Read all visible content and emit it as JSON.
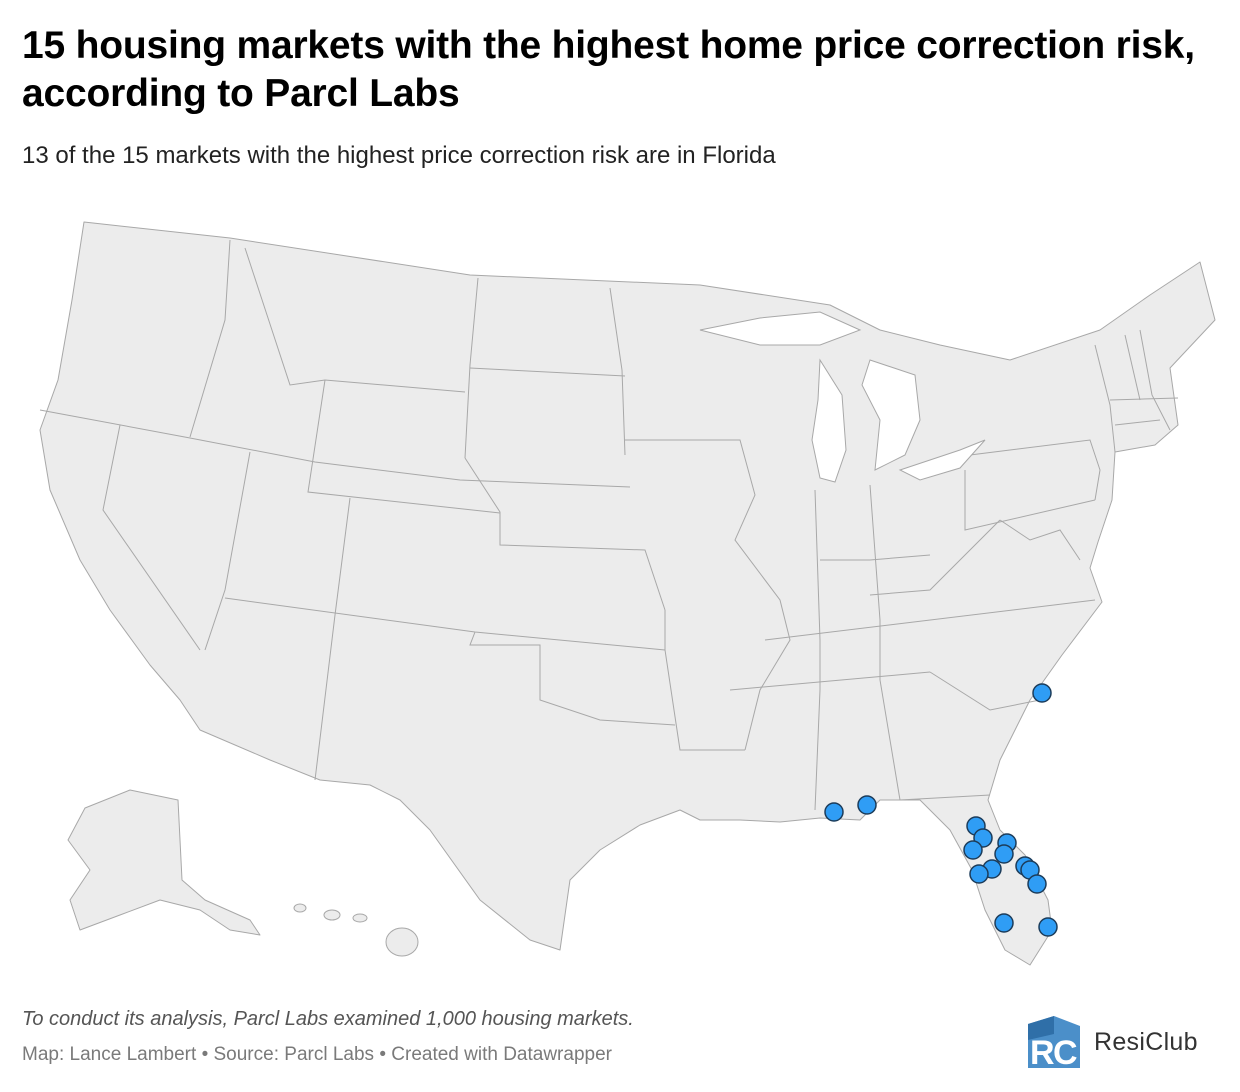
{
  "title": "15 housing markets with the highest home price correction risk, according to Parcl Labs",
  "subtitle": "13 of the 15 markets with the highest price correction risk are in Florida",
  "note": "To conduct its analysis, Parcl Labs examined 1,000 housing markets.",
  "credits": {
    "map_label": "Map:",
    "author": "Lance Lambert",
    "source_label": "Source:",
    "source": "Parcl Labs",
    "tool": "Created with Datawrapper",
    "separator": "•"
  },
  "brand": {
    "name": "ResiClub",
    "logo_icon": "resiclub-logo-icon",
    "logo_color": "#3d86c4"
  },
  "map": {
    "land_color": "#ececec",
    "border_color": "#a8a8a8",
    "marker_color": "#2f9df5",
    "marker_stroke": "#1c3c5a"
  }
}
